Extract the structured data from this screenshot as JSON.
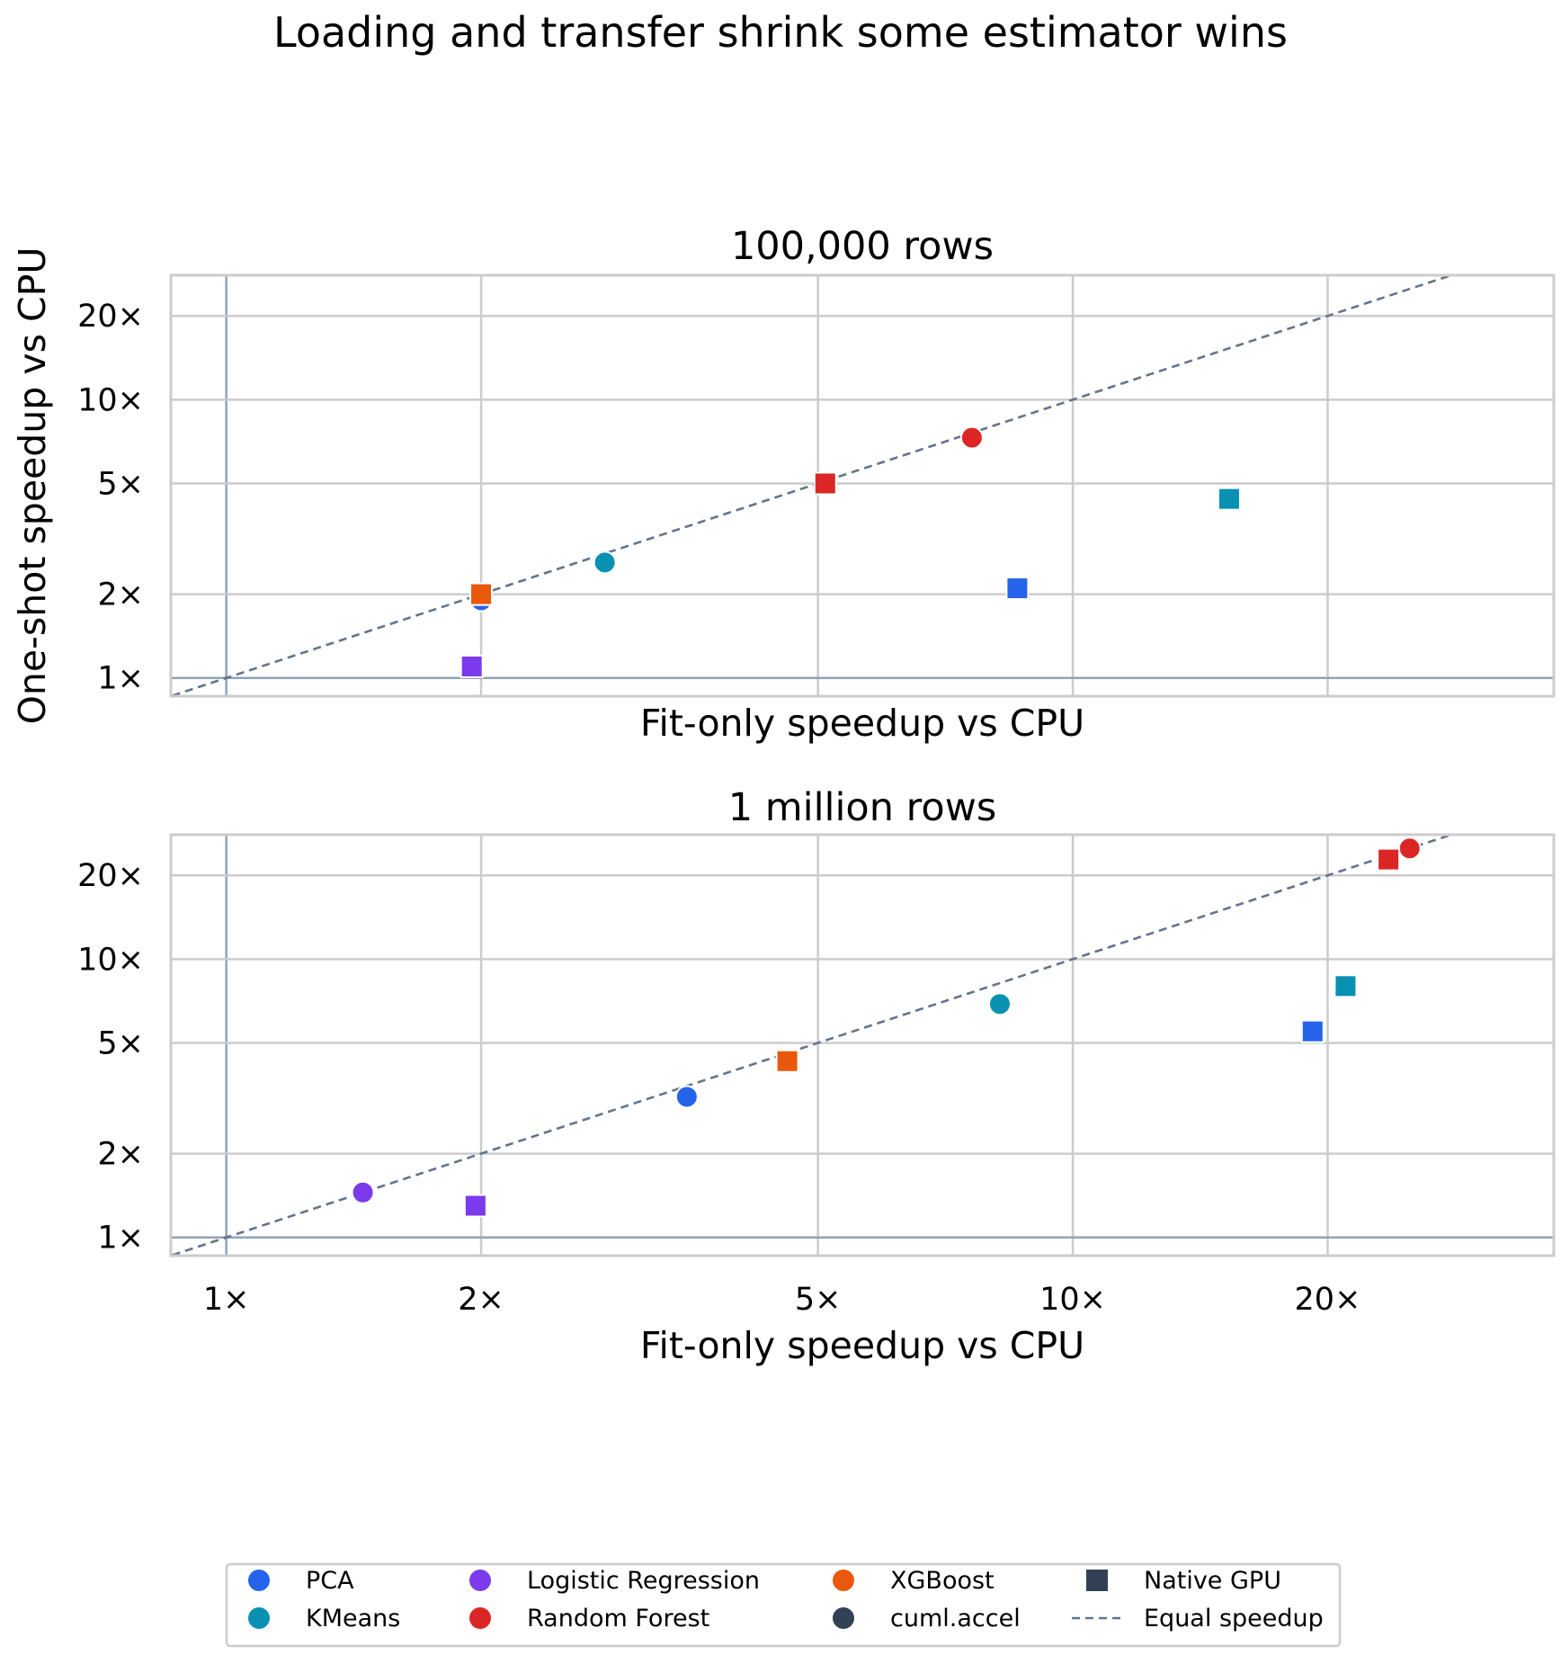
{
  "figure": {
    "title": "Loading and transfer shrink some estimator wins",
    "ylabel": "One-shot speedup vs CPU"
  },
  "chart_data": [
    {
      "type": "scatter",
      "title": "100,000 rows",
      "xlabel": "Fit-only speedup vs CPU",
      "ylabel": "One-shot speedup vs CPU",
      "x_scale": "log",
      "y_scale": "log",
      "xlim": [
        0.86,
        37
      ],
      "ylim": [
        0.86,
        28
      ],
      "x_ticks": [
        1,
        2,
        5,
        10,
        20
      ],
      "x_tick_labels_visible": false,
      "y_ticks": [
        1,
        2,
        5,
        10,
        20
      ],
      "tick_labels": [
        "1×",
        "2×",
        "5×",
        "10×",
        "20×"
      ],
      "grid": true,
      "reference_line": "y = x",
      "points": [
        {
          "estimator": "PCA",
          "method": "cuml.accel",
          "x": 2.0,
          "y": 1.9
        },
        {
          "estimator": "PCA",
          "method": "Native GPU",
          "x": 8.6,
          "y": 2.1
        },
        {
          "estimator": "KMeans",
          "method": "cuml.accel",
          "x": 2.8,
          "y": 2.6
        },
        {
          "estimator": "KMeans",
          "method": "Native GPU",
          "x": 15.3,
          "y": 4.4
        },
        {
          "estimator": "Logistic Regression",
          "method": "Native GPU",
          "x": 1.95,
          "y": 1.1
        },
        {
          "estimator": "Random Forest",
          "method": "cuml.accel",
          "x": 7.6,
          "y": 7.3
        },
        {
          "estimator": "Random Forest",
          "method": "Native GPU",
          "x": 5.1,
          "y": 5.0
        },
        {
          "estimator": "XGBoost",
          "method": "Native GPU",
          "x": 2.0,
          "y": 2.0
        }
      ]
    },
    {
      "type": "scatter",
      "title": "1 million rows",
      "xlabel": "Fit-only speedup vs CPU",
      "ylabel": "",
      "x_scale": "log",
      "y_scale": "log",
      "xlim": [
        0.86,
        37
      ],
      "ylim": [
        0.86,
        28
      ],
      "x_ticks": [
        1,
        2,
        5,
        10,
        20
      ],
      "y_ticks": [
        1,
        2,
        5,
        10,
        20
      ],
      "tick_labels": [
        "1×",
        "2×",
        "5×",
        "10×",
        "20×"
      ],
      "grid": true,
      "reference_line": "y = x",
      "points": [
        {
          "estimator": "PCA",
          "method": "cuml.accel",
          "x": 3.5,
          "y": 3.2
        },
        {
          "estimator": "PCA",
          "method": "Native GPU",
          "x": 19.2,
          "y": 5.5
        },
        {
          "estimator": "KMeans",
          "method": "cuml.accel",
          "x": 8.2,
          "y": 6.9
        },
        {
          "estimator": "KMeans",
          "method": "Native GPU",
          "x": 21.0,
          "y": 8.0
        },
        {
          "estimator": "Logistic Regression",
          "method": "cuml.accel",
          "x": 1.45,
          "y": 1.45
        },
        {
          "estimator": "Logistic Regression",
          "method": "Native GPU",
          "x": 1.97,
          "y": 1.3
        },
        {
          "estimator": "Random Forest",
          "method": "cuml.accel",
          "x": 25.0,
          "y": 25.0
        },
        {
          "estimator": "Random Forest",
          "method": "Native GPU",
          "x": 23.6,
          "y": 22.8
        },
        {
          "estimator": "XGBoost",
          "method": "Native GPU",
          "x": 4.6,
          "y": 4.3
        }
      ]
    }
  ],
  "colors": {
    "PCA": "#2563eb",
    "KMeans": "#0891b2",
    "Logistic Regression": "#7c3aed",
    "Random Forest": "#dc2626",
    "XGBoost": "#ea580c",
    "cuml.accel": "#334155",
    "Native GPU": "#334155",
    "Equal speedup": "#64748b",
    "grid": "#cccccc",
    "spine": "#cccccc",
    "unit_line": "#94a3b8"
  },
  "legend": {
    "placement": "bottom-center",
    "items": [
      {
        "label": "PCA",
        "marker": "circle",
        "color_key": "PCA"
      },
      {
        "label": "KMeans",
        "marker": "circle",
        "color_key": "KMeans"
      },
      {
        "label": "Logistic Regression",
        "marker": "circle",
        "color_key": "Logistic Regression"
      },
      {
        "label": "Random Forest",
        "marker": "circle",
        "color_key": "Random Forest"
      },
      {
        "label": "XGBoost",
        "marker": "circle",
        "color_key": "XGBoost"
      },
      {
        "label": "cuml.accel",
        "marker": "circle",
        "color_key": "cuml.accel"
      },
      {
        "label": "Native GPU",
        "marker": "square",
        "color_key": "Native GPU"
      },
      {
        "label": "Equal speedup",
        "marker": "dashed-line",
        "color_key": "Equal speedup"
      }
    ]
  }
}
